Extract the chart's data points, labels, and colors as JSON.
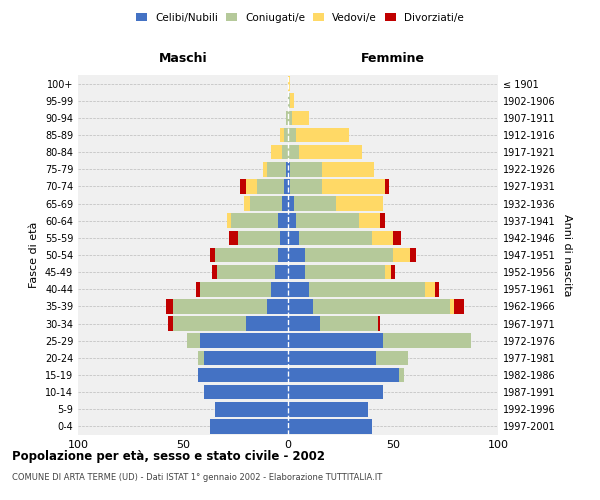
{
  "age_groups": [
    "0-4",
    "5-9",
    "10-14",
    "15-19",
    "20-24",
    "25-29",
    "30-34",
    "35-39",
    "40-44",
    "45-49",
    "50-54",
    "55-59",
    "60-64",
    "65-69",
    "70-74",
    "75-79",
    "80-84",
    "85-89",
    "90-94",
    "95-99",
    "100+"
  ],
  "birth_years": [
    "1997-2001",
    "1992-1996",
    "1987-1991",
    "1982-1986",
    "1977-1981",
    "1972-1976",
    "1967-1971",
    "1962-1966",
    "1957-1961",
    "1952-1956",
    "1947-1951",
    "1942-1946",
    "1937-1941",
    "1932-1936",
    "1927-1931",
    "1922-1926",
    "1917-1921",
    "1912-1916",
    "1907-1911",
    "1902-1906",
    "≤ 1901"
  ],
  "colors": {
    "celibi": "#4472c4",
    "coniugati": "#b5c99a",
    "vedovi": "#ffd966",
    "divorziati": "#c00000"
  },
  "maschi": {
    "celibi": [
      37,
      35,
      40,
      43,
      40,
      42,
      20,
      10,
      8,
      6,
      5,
      4,
      5,
      3,
      2,
      1,
      0,
      0,
      0,
      0,
      0
    ],
    "coniugati": [
      0,
      0,
      0,
      0,
      3,
      6,
      35,
      45,
      34,
      28,
      30,
      20,
      22,
      15,
      13,
      9,
      3,
      2,
      1,
      0,
      0
    ],
    "vedovi": [
      0,
      0,
      0,
      0,
      0,
      0,
      0,
      0,
      0,
      0,
      0,
      0,
      2,
      3,
      5,
      2,
      5,
      2,
      0,
      0,
      0
    ],
    "divorziati": [
      0,
      0,
      0,
      0,
      0,
      0,
      2,
      3,
      2,
      2,
      2,
      4,
      0,
      0,
      3,
      0,
      0,
      0,
      0,
      0,
      0
    ]
  },
  "femmine": {
    "celibi": [
      40,
      38,
      45,
      53,
      42,
      45,
      15,
      12,
      10,
      8,
      8,
      5,
      4,
      3,
      1,
      1,
      0,
      0,
      0,
      0,
      0
    ],
    "coniugati": [
      0,
      0,
      0,
      2,
      15,
      42,
      28,
      65,
      55,
      38,
      42,
      35,
      30,
      20,
      15,
      15,
      5,
      4,
      2,
      1,
      0
    ],
    "vedovi": [
      0,
      0,
      0,
      0,
      0,
      0,
      0,
      2,
      5,
      3,
      8,
      10,
      10,
      22,
      30,
      25,
      30,
      25,
      8,
      2,
      1
    ],
    "divorziati": [
      0,
      0,
      0,
      0,
      0,
      0,
      1,
      5,
      2,
      2,
      3,
      4,
      2,
      0,
      2,
      0,
      0,
      0,
      0,
      0,
      0
    ]
  },
  "title": "Popolazione per età, sesso e stato civile - 2002",
  "subtitle": "COMUNE DI ARTA TERME (UD) - Dati ISTAT 1° gennaio 2002 - Elaborazione TUTTITALIA.IT",
  "xlabel_left": "Maschi",
  "xlabel_right": "Femmine",
  "ylabel_left": "Fasce di età",
  "ylabel_right": "Anni di nascita",
  "xlim": 100,
  "legend_labels": [
    "Celibi/Nubili",
    "Coniugati/e",
    "Vedovi/e",
    "Divorziati/e"
  ],
  "bg_color": "#ffffff",
  "plot_bg": "#f0f0f0",
  "grid_color": "#cccccc",
  "bar_height": 0.85
}
